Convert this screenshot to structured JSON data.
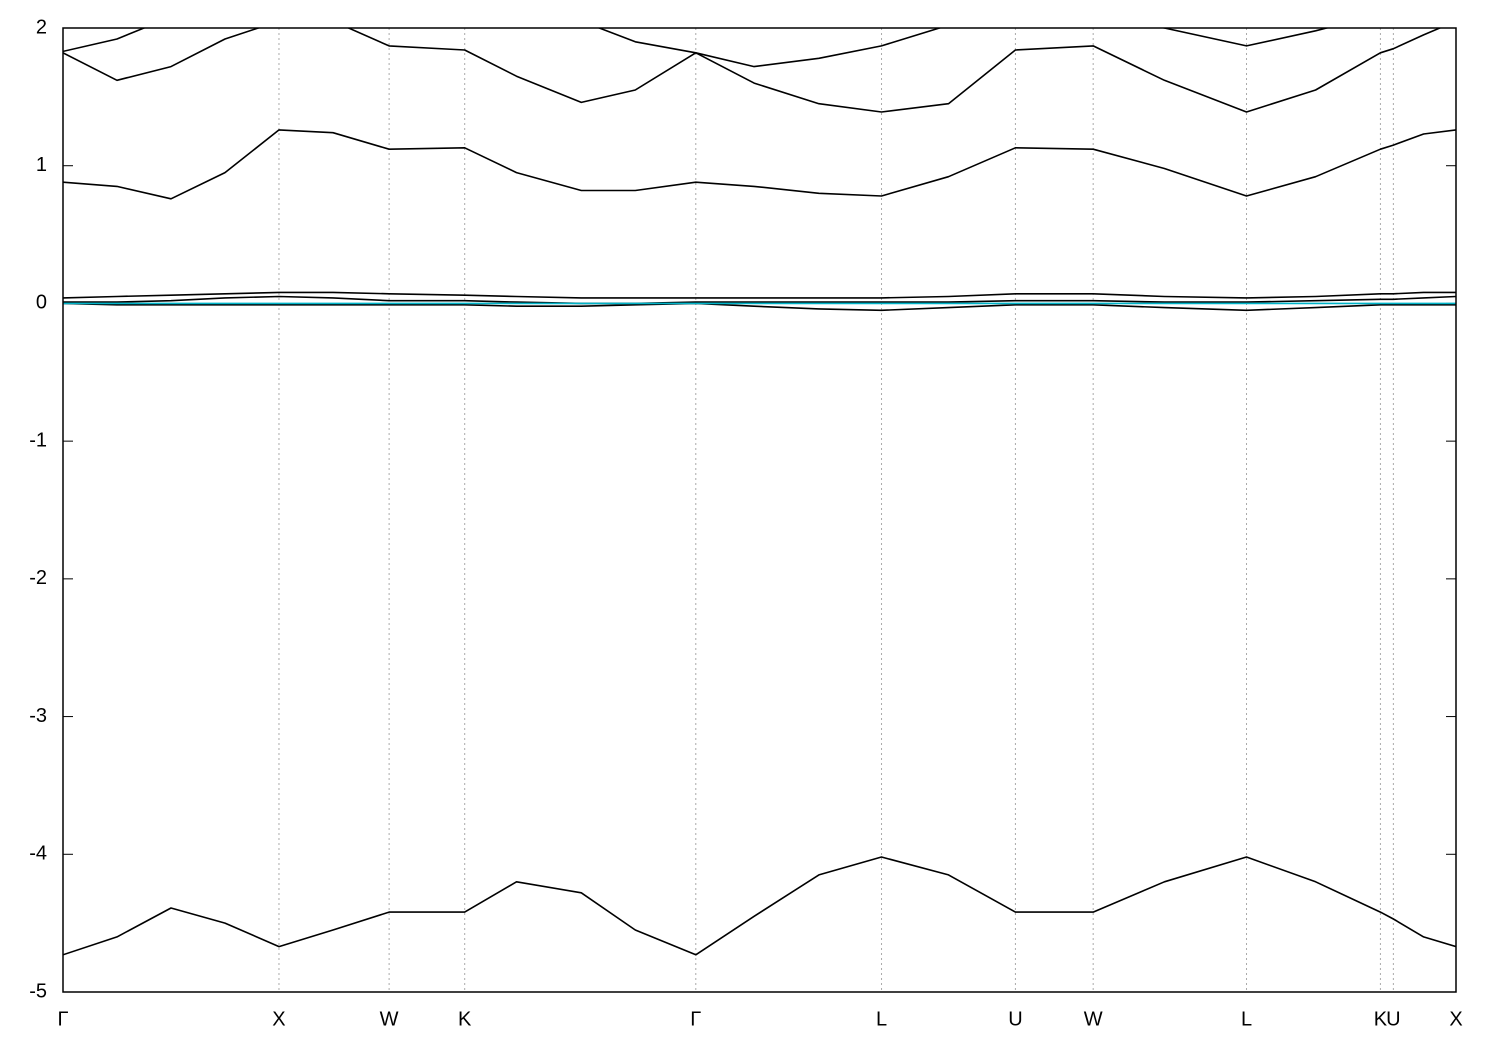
{
  "chart_data": {
    "type": "line",
    "grid": true,
    "xlim": [
      0,
      6.45
    ],
    "ylim": [
      -5,
      2
    ],
    "yticks": [
      -5,
      -4,
      -3,
      -2,
      -1,
      0,
      1,
      2
    ],
    "xticks": [
      {
        "value": 0,
        "label": "Γ"
      },
      {
        "value": 1.0,
        "label": "X"
      },
      {
        "value": 1.51,
        "label": "W"
      },
      {
        "value": 1.86,
        "label": "K"
      },
      {
        "value": 2.93,
        "label": "Γ"
      },
      {
        "value": 3.79,
        "label": "L"
      },
      {
        "value": 4.41,
        "label": "U"
      },
      {
        "value": 4.77,
        "label": "W"
      },
      {
        "value": 5.48,
        "label": "L"
      },
      {
        "value": 6.1,
        "label": "K"
      },
      {
        "value": 6.16,
        "label": "U"
      },
      {
        "value": 6.45,
        "label": "X"
      }
    ],
    "x": [
      0,
      0.25,
      0.5,
      0.75,
      1.0,
      1.25,
      1.51,
      1.86,
      2.1,
      2.4,
      2.65,
      2.93,
      3.2,
      3.5,
      3.79,
      4.1,
      4.41,
      4.77,
      5.1,
      5.48,
      5.8,
      6.1,
      6.16,
      6.3,
      6.45
    ],
    "series": [
      {
        "color": "#000000",
        "values": [
          -4.73,
          -4.6,
          -4.39,
          -4.5,
          -4.67,
          -4.55,
          -4.42,
          -4.42,
          -4.2,
          -4.28,
          -4.55,
          -4.73,
          -4.45,
          -4.15,
          -4.02,
          -4.15,
          -4.42,
          -4.42,
          -4.2,
          -4.02,
          -4.2,
          -4.42,
          -4.47,
          -4.6,
          -4.67
        ]
      },
      {
        "color": "#000000",
        "values": [
          0,
          -0.01,
          -0.01,
          -0.01,
          -0.01,
          -0.01,
          -0.01,
          -0.01,
          -0.02,
          -0.02,
          -0.01,
          0,
          -0.02,
          -0.04,
          -0.05,
          -0.03,
          -0.01,
          -0.01,
          -0.03,
          -0.05,
          -0.03,
          -0.01,
          -0.01,
          -0.01,
          -0.01
        ]
      },
      {
        "color": "#000000",
        "values": [
          0.01,
          0.01,
          0.02,
          0.04,
          0.05,
          0.04,
          0.02,
          0.02,
          0.01,
          0,
          0,
          0.01,
          0.01,
          0.01,
          0.01,
          0.01,
          0.02,
          0.02,
          0.01,
          0.01,
          0.02,
          0.03,
          0.03,
          0.04,
          0.05
        ]
      },
      {
        "color": "#000000",
        "values": [
          0.04,
          0.05,
          0.06,
          0.07,
          0.08,
          0.08,
          0.07,
          0.06,
          0.05,
          0.04,
          0.04,
          0.04,
          0.04,
          0.04,
          0.04,
          0.05,
          0.07,
          0.07,
          0.05,
          0.04,
          0.05,
          0.07,
          0.07,
          0.08,
          0.08
        ]
      },
      {
        "color": "#00b4c8",
        "values": [
          0,
          0,
          0,
          0,
          0,
          0,
          0,
          0,
          0,
          0,
          0,
          0,
          0,
          0,
          0,
          0,
          0,
          0,
          0,
          0,
          0,
          0,
          0,
          0,
          0
        ]
      },
      {
        "color": "#000000",
        "values": [
          0.88,
          0.85,
          0.76,
          0.95,
          1.26,
          1.24,
          1.12,
          1.13,
          0.95,
          0.82,
          0.82,
          0.88,
          0.85,
          0.8,
          0.78,
          0.92,
          1.13,
          1.12,
          0.98,
          0.78,
          0.92,
          1.12,
          1.15,
          1.23,
          1.26
        ]
      },
      {
        "color": "#000000",
        "values": [
          1.82,
          1.62,
          1.72,
          1.92,
          2.05,
          2.05,
          1.87,
          1.84,
          1.65,
          1.46,
          1.55,
          1.82,
          1.6,
          1.45,
          1.39,
          1.45,
          1.84,
          1.87,
          1.62,
          1.39,
          1.55,
          1.82,
          1.85,
          1.95,
          2.05
        ]
      },
      {
        "color": "#000000",
        "values": [
          1.83,
          1.92,
          2.08,
          2.15,
          2.2,
          2.2,
          2.25,
          2.25,
          2.2,
          2.05,
          1.9,
          1.82,
          1.72,
          1.78,
          1.87,
          2.02,
          2.1,
          2.1,
          2.0,
          1.87,
          1.98,
          2.1,
          2.12,
          2.2,
          2.25
        ]
      }
    ]
  }
}
